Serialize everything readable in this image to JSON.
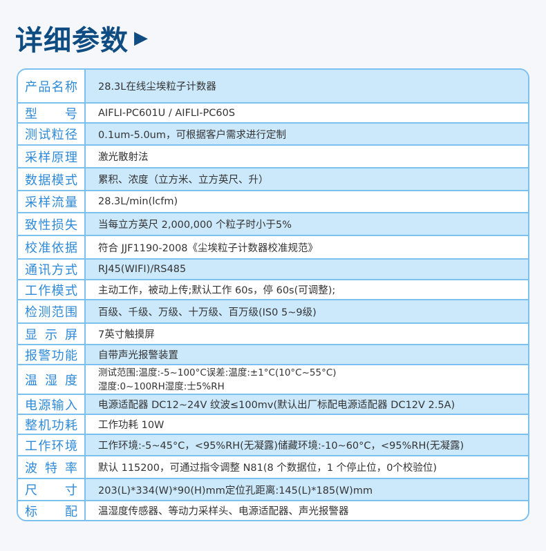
{
  "title": "详细参数",
  "title_arrow_icon": "triangle-right",
  "colors": {
    "title": "#0f4c81",
    "label": "#2e8ad8",
    "border": "#7cc0f0",
    "row_fill": "#cce9fb"
  },
  "rows": [
    {
      "label": "产品名称",
      "value": [
        "28.3L在线尘埃粒子计数器"
      ]
    },
    {
      "label": "型　　号",
      "value": [
        "AIFLI-PC601U / AIFLI-PC60S"
      ]
    },
    {
      "label": "测试粒径",
      "value": [
        "0.1um-5.0um，可根据客户需求进行定制"
      ]
    },
    {
      "label": "采样原理",
      "value": [
        "激光散射法"
      ]
    },
    {
      "label": "数据模式",
      "value": [
        "累积、浓度（立方米、立方英尺、升）"
      ]
    },
    {
      "label": "采样流量",
      "value": [
        "28.3L/min(lcfm)"
      ]
    },
    {
      "label": "致性损失",
      "value": [
        "当每立方英尺 2,000,000 个粒子时小于5%"
      ]
    },
    {
      "label": "校准依据",
      "value": [
        "符合 JJF1190-2008《尘埃粒子计数器校准规范》"
      ]
    },
    {
      "label": "通讯方式",
      "value": [
        "RJ45(WIFI)/RS485"
      ]
    },
    {
      "label": "工作模式",
      "value": [
        "主动工作，被动上传;默认工作 60s，停 60s(可调整);"
      ]
    },
    {
      "label": "检测范围",
      "value": [
        "百级、千级、万级、十万级、百万级(IS0 5~9级)"
      ]
    },
    {
      "label": "显示屏",
      "value": [
        "7英寸触摸屏"
      ]
    },
    {
      "label": "报警功能",
      "value": [
        "自带声光报警装置"
      ]
    },
    {
      "label": "温湿度",
      "value": [
        "测试范围:温度:-5~100°C误差:温度:±1°C(10°C~55°C)",
        "湿度:0~100RH湿度:士5%RH"
      ]
    },
    {
      "label": "电源输入",
      "value": [
        "电源适配器 DC12~24V 纹波≤100mv(默认出厂标配电源适配器 DC12V 2.5A)"
      ]
    },
    {
      "label": "整机功耗",
      "value": [
        "工作功耗 10W"
      ]
    },
    {
      "label": "工作环境",
      "value": [
        "工作环境:-5~45°C，<95%RH(无凝露)储藏环境:-10~60°C，<95%RH(无凝露)"
      ]
    },
    {
      "label": "波特率",
      "value": [
        "默认 115200，可通过指令调整 N81(8 个数据位，1 个停止位，0个校验位)"
      ]
    },
    {
      "label": "尺　　寸",
      "value": [
        "203(L)*334(W)*90(H)mm定位孔距离:145(L)*185(W)mm"
      ]
    },
    {
      "label": "标　　配",
      "value": [
        "温湿度传感器、等动力采样头、电源适配器、声光报警器"
      ]
    }
  ]
}
